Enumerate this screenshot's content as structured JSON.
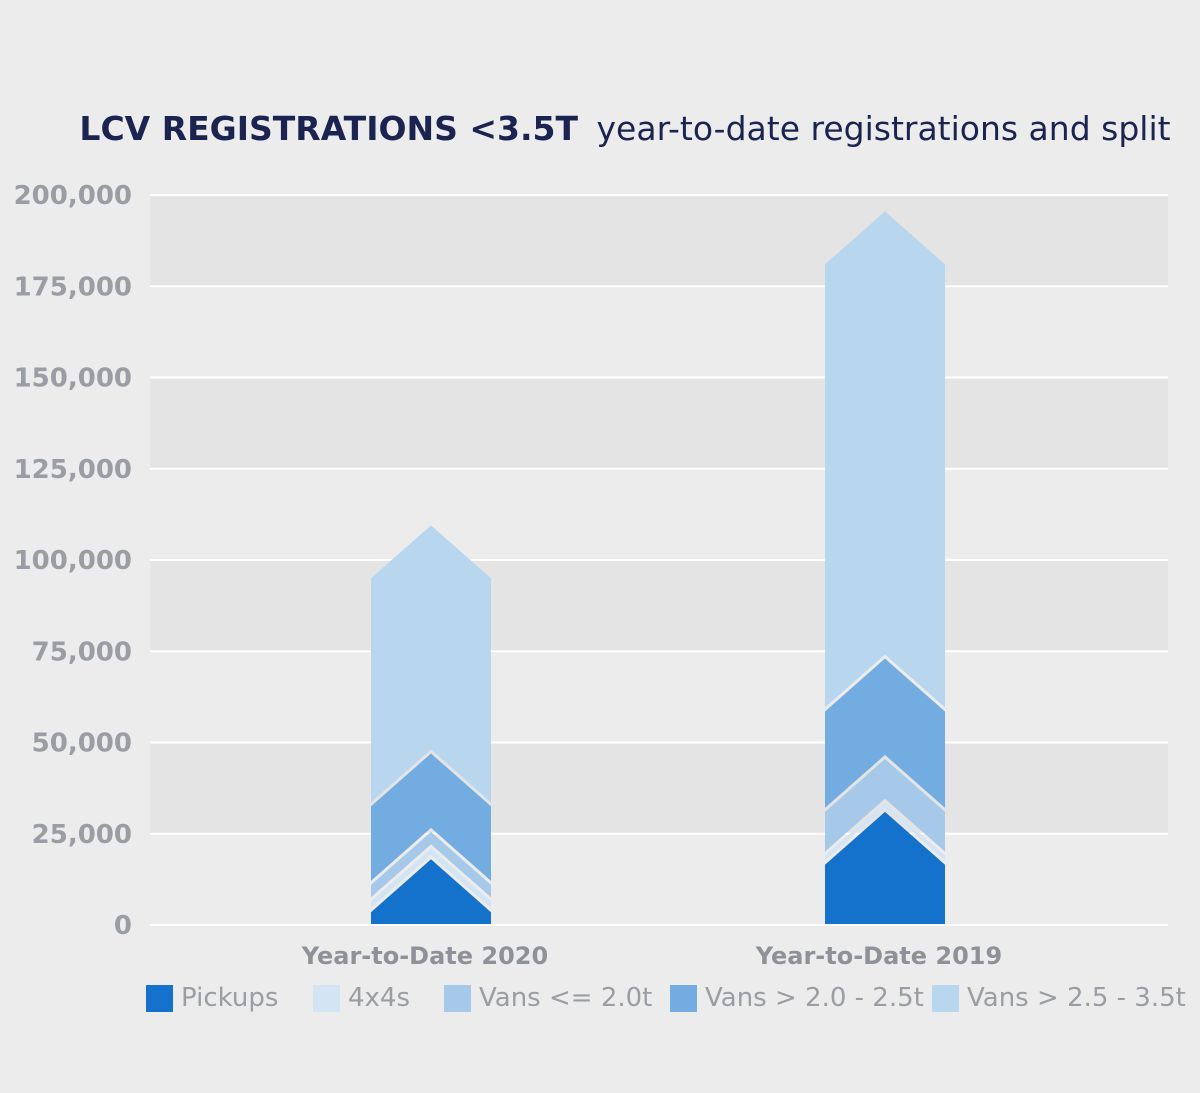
{
  "chart_data": {
    "type": "bar",
    "stacked": true,
    "title_bold": "LCV REGISTRATIONS <3.5T",
    "title_rest": "year-to-date registrations and split",
    "categories": [
      "Year-to-Date 2020",
      "Year-to-Date 2019"
    ],
    "ylim": [
      0,
      200000
    ],
    "yticks": [
      "0",
      "25,000",
      "50,000",
      "75,000",
      "100,000",
      "125,000",
      "150,000",
      "175,000",
      "200,000"
    ],
    "ytick_values": [
      0,
      25000,
      50000,
      75000,
      100000,
      125000,
      150000,
      175000,
      200000
    ],
    "grid": true,
    "legend_position": "bottom",
    "series": [
      {
        "name": "Pickups",
        "color": "#1472cc",
        "values": [
          18000,
          31000
        ]
      },
      {
        "name": "4x4s",
        "color": "#d3e4f5",
        "values": [
          3000,
          2500
        ]
      },
      {
        "name": "Vans <= 2.0t",
        "color": "#a6c9ea",
        "values": [
          4500,
          12000
        ]
      },
      {
        "name": "Vans > 2.0 - 2.5t",
        "color": "#72ace0",
        "values": [
          21500,
          27500
        ]
      },
      {
        "name": "Vans > 2.5 - 3.5t",
        "color": "#b9d6ef",
        "values": [
          62500,
          122500
        ]
      }
    ]
  }
}
